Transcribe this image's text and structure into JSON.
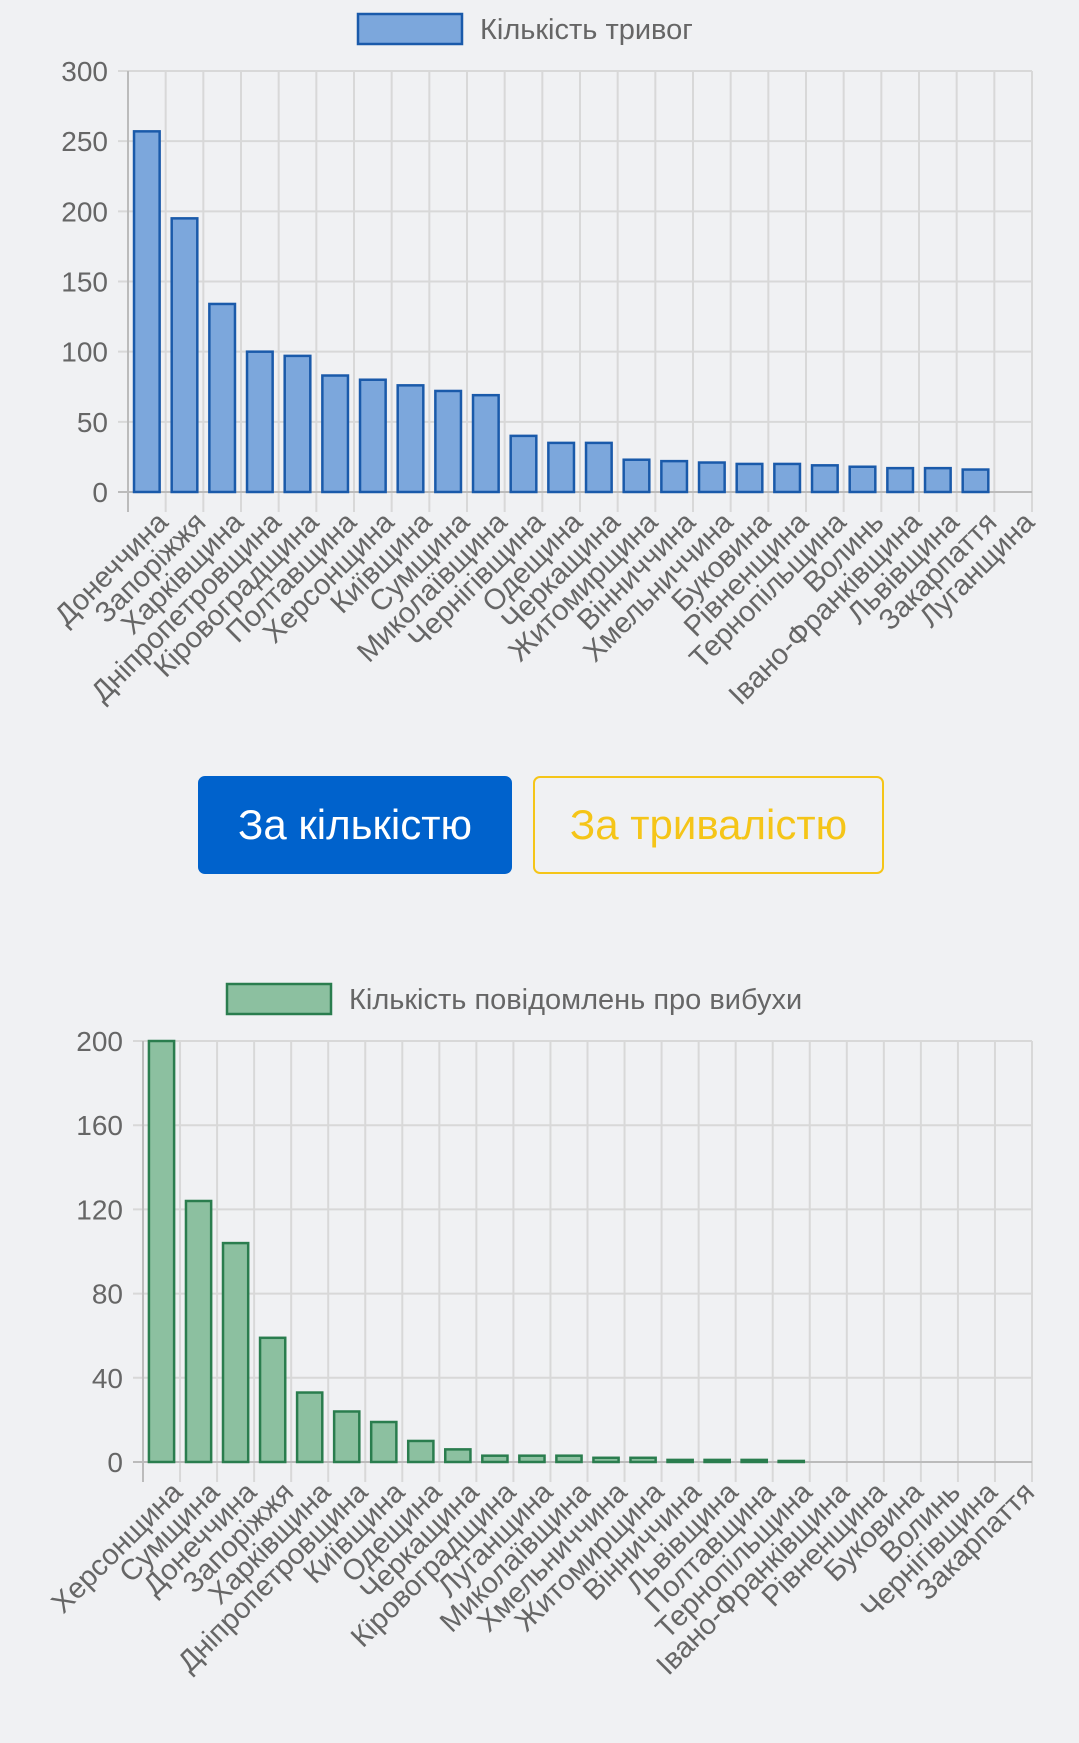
{
  "buttons": {
    "by_count": "За кількістю",
    "by_duration": "За тривалістю"
  },
  "chart_data": [
    {
      "type": "bar",
      "legend": "Кількість тривог",
      "color": "#7ca7dc",
      "border": "#1a5aaa",
      "categories": [
        "Донеччина",
        "Запоріжжя",
        "Харківщина",
        "Дніпропетровщина",
        "Кіровоградщина",
        "Полтавщина",
        "Херсонщина",
        "Київщина",
        "Сумщина",
        "Миколаївщина",
        "Чернігівщина",
        "Одещина",
        "Черкащина",
        "Житомирщина",
        "Вінниччина",
        "Хмельниччина",
        "Буковина",
        "Рівненщина",
        "Тернопільщина",
        "Волинь",
        "Івано-Франківщина",
        "Львівщина",
        "Закарпаття",
        "Луганщина"
      ],
      "values": [
        257,
        195,
        134,
        100,
        97,
        83,
        80,
        76,
        72,
        69,
        40,
        35,
        35,
        23,
        22,
        21,
        20,
        20,
        19,
        18,
        17,
        17,
        16,
        0
      ],
      "ylim": [
        0,
        300
      ],
      "yticks": [
        0,
        50,
        100,
        150,
        200,
        250,
        300
      ]
    },
    {
      "type": "bar",
      "legend": "Кількість повідомлень про вибухи",
      "color": "#8cc0a0",
      "border": "#2a7d4e",
      "categories": [
        "Херсонщина",
        "Сумщина",
        "Донеччина",
        "Запоріжжя",
        "Харківщина",
        "Дніпропетровщина",
        "Київщина",
        "Одещина",
        "Черкащина",
        "Кіровоградщина",
        "Луганщина",
        "Миколаївщина",
        "Хмельниччина",
        "Житомирщина",
        "Вінниччина",
        "Львівщина",
        "Полтавщина",
        "Тернопільщина",
        "Івано-Франківщина",
        "Рівненщина",
        "Буковина",
        "Волинь",
        "Чернігівщина",
        "Закарпаття"
      ],
      "values": [
        200,
        124,
        104,
        59,
        33,
        24,
        19,
        10,
        6,
        3,
        3,
        3,
        2,
        2,
        1,
        1,
        1,
        0.5,
        0,
        0,
        0,
        0,
        0,
        0
      ],
      "ylim": [
        0,
        200
      ],
      "yticks": [
        0,
        40,
        80,
        120,
        160,
        200
      ]
    }
  ]
}
